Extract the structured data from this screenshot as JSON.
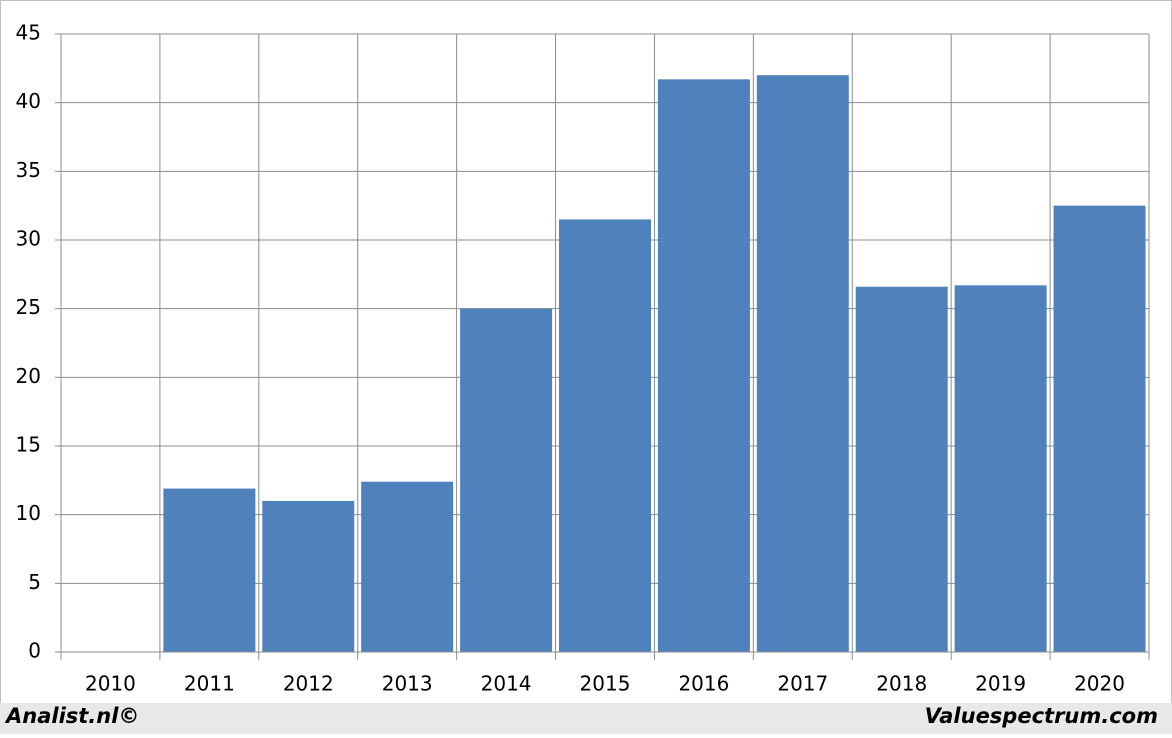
{
  "chart_data": {
    "type": "bar",
    "categories": [
      "2010",
      "2011",
      "2012",
      "2013",
      "2014",
      "2015",
      "2016",
      "2017",
      "2018",
      "2019",
      "2020"
    ],
    "values": [
      null,
      11.9,
      11.0,
      12.4,
      25.0,
      31.5,
      41.7,
      42.0,
      26.6,
      26.7,
      32.5
    ],
    "color": "#4f81bd",
    "ylim": [
      0,
      45
    ],
    "yticks": [
      0,
      5,
      10,
      15,
      20,
      25,
      30,
      35,
      40,
      45
    ],
    "grid": true
  },
  "footer": {
    "left": "Analist.nl©",
    "right": "Valuespectrum.com"
  }
}
